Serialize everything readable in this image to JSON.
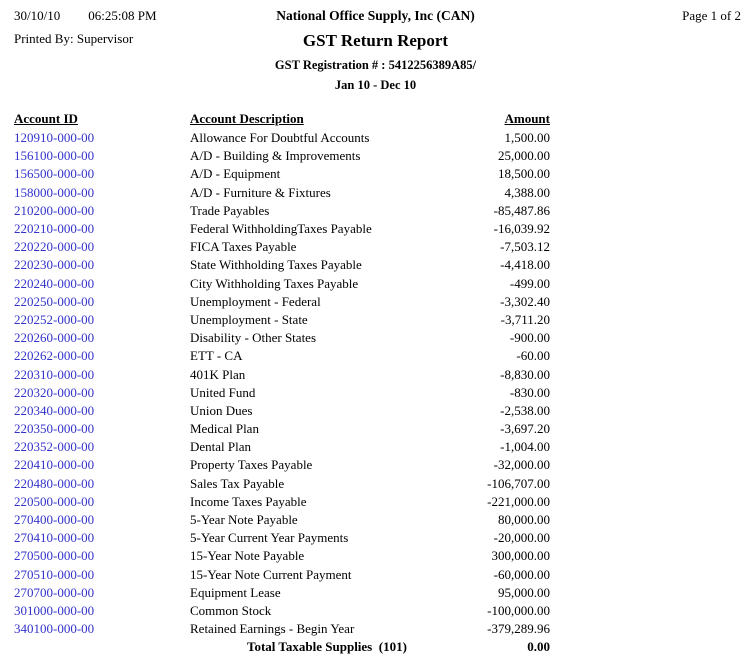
{
  "header": {
    "date": "30/10/10",
    "time": "06:25:08 PM",
    "company": "National Office Supply, Inc (CAN)",
    "page_indicator": "Page 1 of  2",
    "printed_by": "Printed By: Supervisor",
    "report_title": "GST Return Report",
    "registration": "GST Registration # : 5412256389A85/",
    "period": "Jan 10 - Dec 10"
  },
  "colors": {
    "link": "#3333cc",
    "text": "#000000",
    "background": "#ffffff"
  },
  "table": {
    "columns": [
      "Account ID",
      "Account Description",
      "Amount"
    ],
    "rows": [
      {
        "id": "120910-000-00",
        "description": "Allowance For Doubtful Accounts",
        "amount": "1,500.00"
      },
      {
        "id": "156100-000-00",
        "description": "A/D - Building & Improvements",
        "amount": "25,000.00"
      },
      {
        "id": "156500-000-00",
        "description": "A/D - Equipment",
        "amount": "18,500.00"
      },
      {
        "id": "158000-000-00",
        "description": "A/D - Furniture & Fixtures",
        "amount": "4,388.00"
      },
      {
        "id": "210200-000-00",
        "description": "Trade Payables",
        "amount": "-85,487.86"
      },
      {
        "id": "220210-000-00",
        "description": "Federal WithholdingTaxes Payable",
        "amount": "-16,039.92"
      },
      {
        "id": "220220-000-00",
        "description": "FICA Taxes Payable",
        "amount": "-7,503.12"
      },
      {
        "id": "220230-000-00",
        "description": "State Withholding Taxes Payable",
        "amount": "-4,418.00"
      },
      {
        "id": "220240-000-00",
        "description": "City Withholding Taxes Payable",
        "amount": "-499.00"
      },
      {
        "id": "220250-000-00",
        "description": "Unemployment - Federal",
        "amount": "-3,302.40"
      },
      {
        "id": "220252-000-00",
        "description": "Unemployment - State",
        "amount": "-3,711.20"
      },
      {
        "id": "220260-000-00",
        "description": "Disability - Other States",
        "amount": "-900.00"
      },
      {
        "id": "220262-000-00",
        "description": "ETT - CA",
        "amount": "-60.00"
      },
      {
        "id": "220310-000-00",
        "description": "401K Plan",
        "amount": "-8,830.00"
      },
      {
        "id": "220320-000-00",
        "description": "United Fund",
        "amount": "-830.00"
      },
      {
        "id": "220340-000-00",
        "description": "Union Dues",
        "amount": "-2,538.00"
      },
      {
        "id": "220350-000-00",
        "description": "Medical Plan",
        "amount": "-3,697.20"
      },
      {
        "id": "220352-000-00",
        "description": "Dental Plan",
        "amount": "-1,004.00"
      },
      {
        "id": "220410-000-00",
        "description": "Property Taxes Payable",
        "amount": "-32,000.00"
      },
      {
        "id": "220480-000-00",
        "description": "Sales Tax Payable",
        "amount": "-106,707.00"
      },
      {
        "id": "220500-000-00",
        "description": "Income Taxes Payable",
        "amount": "-221,000.00"
      },
      {
        "id": "270400-000-00",
        "description": "5-Year Note Payable",
        "amount": "80,000.00"
      },
      {
        "id": "270410-000-00",
        "description": "5-Year Current Year Payments",
        "amount": "-20,000.00"
      },
      {
        "id": "270500-000-00",
        "description": "15-Year Note Payable",
        "amount": "300,000.00"
      },
      {
        "id": "270510-000-00",
        "description": "15-Year Note Current Payment",
        "amount": "-60,000.00"
      },
      {
        "id": "270700-000-00",
        "description": "Equipment Lease",
        "amount": "95,000.00"
      },
      {
        "id": "301000-000-00",
        "description": "Common Stock",
        "amount": "-100,000.00"
      },
      {
        "id": "340100-000-00",
        "description": "Retained Earnings - Begin Year",
        "amount": "-379,289.96"
      }
    ],
    "total": {
      "label": "Total Taxable Supplies  (101)",
      "amount": "0.00"
    }
  }
}
